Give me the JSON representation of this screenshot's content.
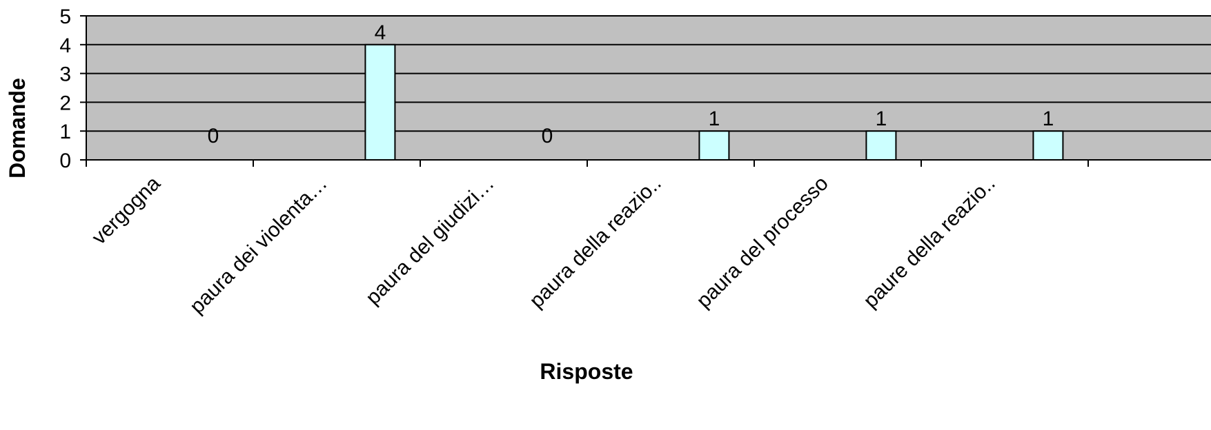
{
  "chart_data": {
    "type": "bar",
    "title": "",
    "xlabel": "Risposte",
    "ylabel": "Domande",
    "categories": [
      "vergogna",
      "paura dei violenta…",
      "paura del giudizi…",
      "paura della reazio..",
      "paura del processo",
      "paure della reazio.."
    ],
    "values": [
      0,
      4,
      0,
      1,
      1,
      1
    ],
    "data_labels": [
      "0",
      "4",
      "0",
      "1",
      "1",
      "1"
    ],
    "yticks": [
      "0",
      "1",
      "2",
      "3",
      "4",
      "5"
    ],
    "ylim": [
      0,
      5
    ],
    "grid": true,
    "legend": false,
    "colors": {
      "plot_background": "#c0c0c0",
      "bar_fill": "#ccffff",
      "bar_stroke": "#000000",
      "gridline": "#000000"
    }
  }
}
